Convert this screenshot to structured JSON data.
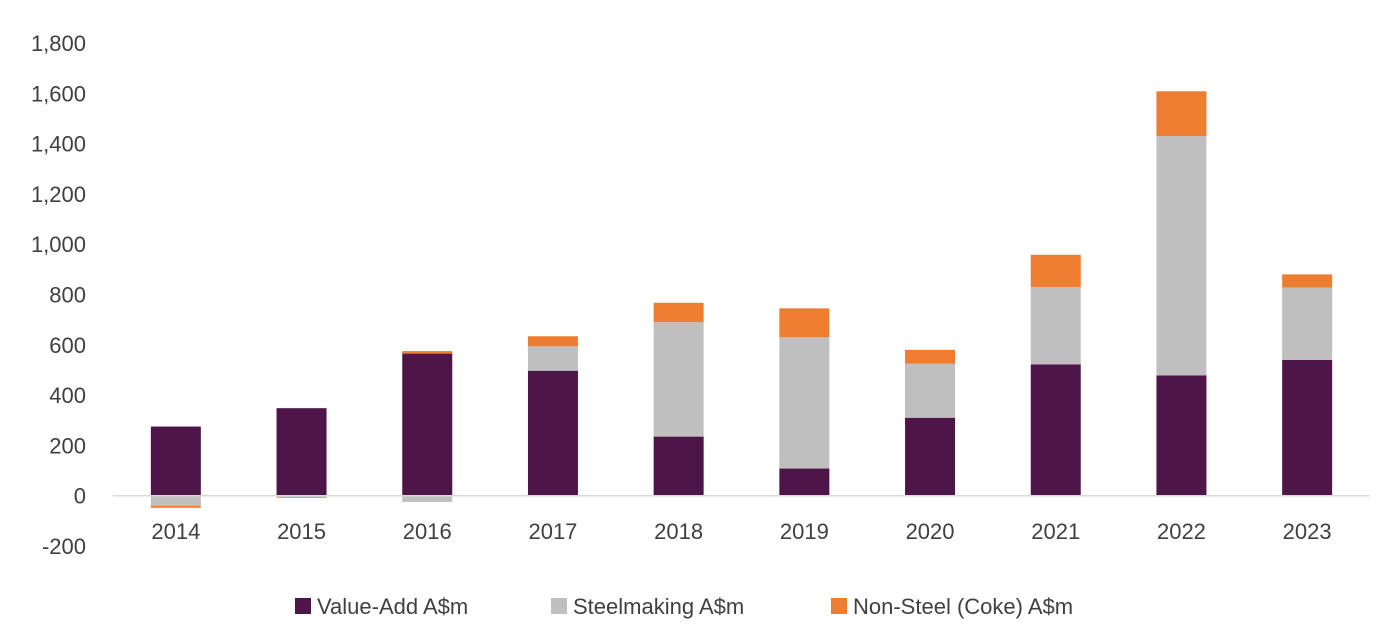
{
  "chart_data": {
    "type": "bar",
    "stacked": true,
    "title": "",
    "xlabel": "",
    "ylabel": "",
    "ylim": [
      -200,
      1800
    ],
    "yticks": [
      -200,
      0,
      200,
      400,
      600,
      800,
      1000,
      1200,
      1400,
      1600,
      1800
    ],
    "ytick_labels": [
      "-200",
      "0",
      "200",
      "400",
      "600",
      "800",
      "1,000",
      "1,200",
      "1,400",
      "1,600",
      "1,800"
    ],
    "grid": false,
    "legend_position": "bottom",
    "categories": [
      "2014",
      "2015",
      "2016",
      "2017",
      "2018",
      "2019",
      "2020",
      "2021",
      "2022",
      "2023"
    ],
    "series": [
      {
        "name": "Value-Add A$m",
        "color": "#4E1548",
        "values": [
          275,
          348,
          565,
          497,
          235,
          108,
          310,
          522,
          478,
          540
        ]
      },
      {
        "name": "Steelmaking A$m",
        "color": "#BFBFBF",
        "values": [
          -40,
          -5,
          -25,
          97,
          455,
          522,
          215,
          308,
          952,
          288
        ]
      },
      {
        "name": "Non-Steel (Coke) A$m",
        "color": "#ED7D31",
        "values": [
          -8,
          -3,
          10,
          40,
          77,
          115,
          55,
          128,
          178,
          52
        ]
      }
    ]
  }
}
